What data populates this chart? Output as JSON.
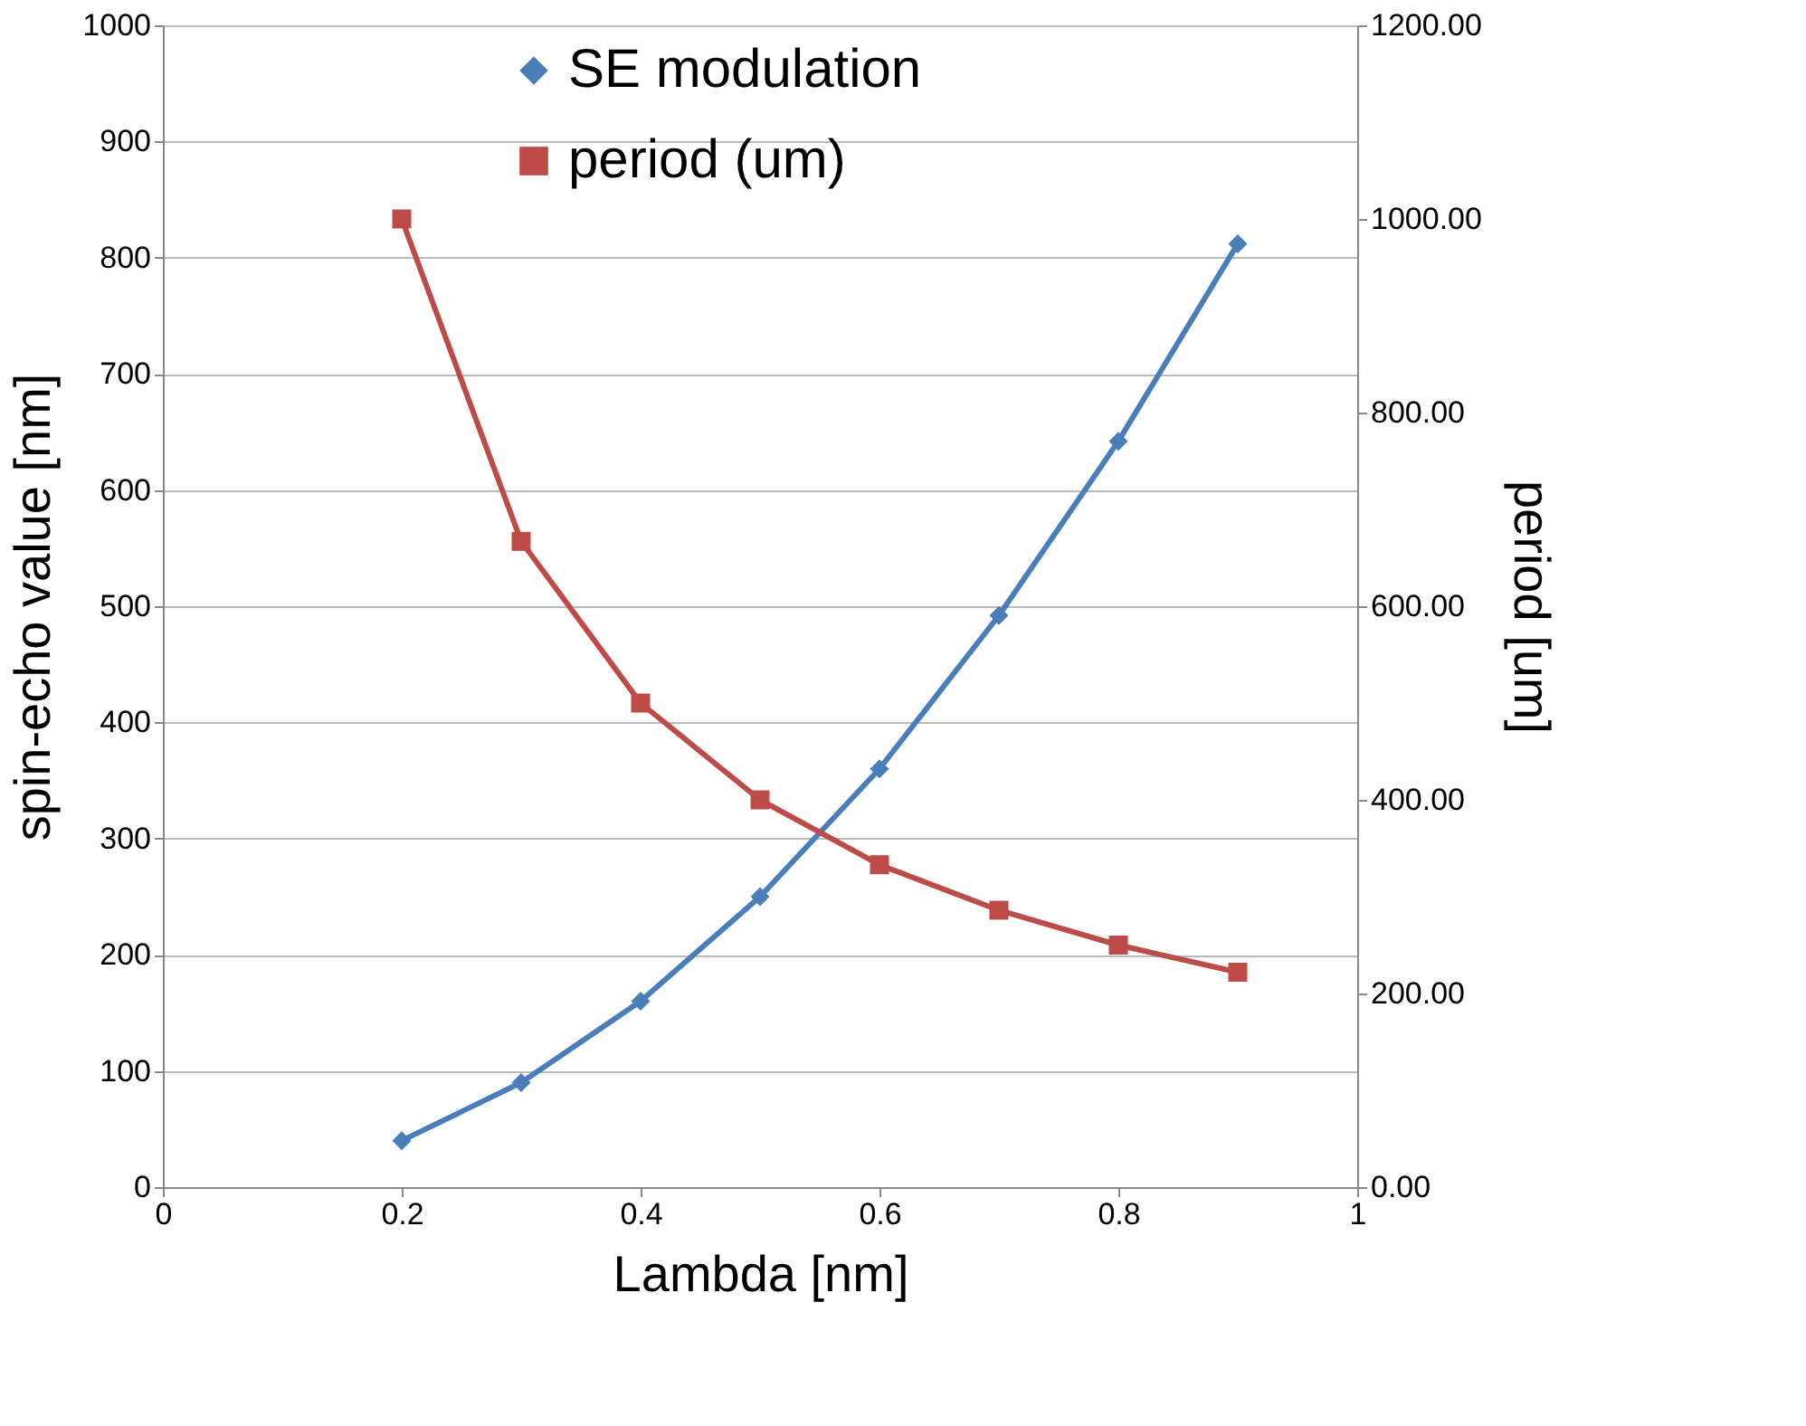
{
  "chart_data": {
    "type": "line",
    "xlabel": "Lambda [nm]",
    "ylabel": "spin-echo value [nm]",
    "y2label": "period [um]",
    "x": [
      0.2,
      0.3,
      0.4,
      0.5,
      0.6,
      0.7,
      0.8,
      0.9
    ],
    "series": [
      {
        "name": "SE modulation",
        "color": "#4a7ebb",
        "marker": "diamond",
        "values": [
          40,
          90,
          160,
          250,
          360,
          492,
          642,
          812
        ]
      },
      {
        "name": "period (um)",
        "color": "#be4b48",
        "marker": "square",
        "axis": "y2",
        "values": [
          1000,
          667,
          500,
          400,
          333,
          286,
          250,
          222
        ]
      }
    ],
    "xlim": [
      0,
      1
    ],
    "xticks": [
      0,
      0.2,
      0.4,
      0.6,
      0.8,
      1
    ],
    "ylim": [
      0,
      1000
    ],
    "yticks": [
      0,
      100,
      200,
      300,
      400,
      500,
      600,
      700,
      800,
      900,
      1000
    ],
    "y2lim": [
      0,
      1200
    ],
    "y2ticks": [
      {
        "value": 0,
        "label": "0.00"
      },
      {
        "value": 200,
        "label": "200.00"
      },
      {
        "value": 400,
        "label": "400.00"
      },
      {
        "value": 600,
        "label": "600.00"
      },
      {
        "value": 800,
        "label": "800.00"
      },
      {
        "value": 1000,
        "label": "1000.00"
      },
      {
        "value": 1200,
        "label": "1200.00"
      }
    ],
    "grid": "y",
    "legend": "top",
    "line_style": "solid"
  }
}
